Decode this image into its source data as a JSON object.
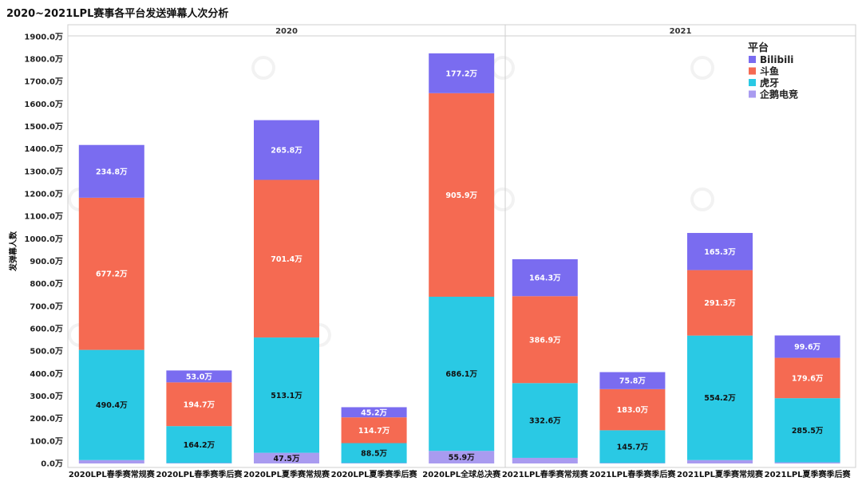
{
  "chart_data": {
    "type": "bar",
    "stacked": true,
    "title": "2020~2021LPL赛事各平台发送弹幕人次分析",
    "ylabel": "发弹幕人数",
    "unit": "万",
    "ylim": [
      0,
      1950
    ],
    "yticks": [
      "0.0万",
      "100.0万",
      "200.0万",
      "300.0万",
      "400.0万",
      "500.0万",
      "600.0万",
      "700.0万",
      "800.0万",
      "900.0万",
      "1000.0万",
      "1100.0万",
      "1200.0万",
      "1300.0万",
      "1400.0万",
      "1500.0万",
      "1600.0万",
      "1700.0万",
      "1800.0万",
      "1900.0万"
    ],
    "panels": [
      {
        "label": "2020",
        "categories": [
          "2020LPL春季赛常规赛",
          "2020LPL春季赛季后赛",
          "2020LPL夏季赛常规赛",
          "2020LPL夏季赛季后赛",
          "2020LPL全球总决赛"
        ]
      },
      {
        "label": "2021",
        "categories": [
          "2021LPL春季赛常规赛",
          "2021LPL春季赛季后赛",
          "2021LPL夏季赛常规赛",
          "2021LPL夏季赛季后赛"
        ]
      }
    ],
    "series": [
      {
        "name": "企鹅电竞",
        "color": "#a99bf0",
        "values": [
          15,
          2,
          47.5,
          2,
          55.9,
          25,
          2,
          15,
          5
        ],
        "labels": [
          "",
          "",
          "47.5万",
          "",
          "55.9万",
          "",
          "",
          "",
          ""
        ]
      },
      {
        "name": "虎牙",
        "color": "#2ac9e4",
        "values": [
          490.4,
          164.2,
          513.1,
          88.5,
          686.1,
          332.6,
          145.7,
          554.2,
          285.5
        ],
        "labels": [
          "490.4万",
          "164.2万",
          "513.1万",
          "88.5万",
          "686.1万",
          "332.6万",
          "145.7万",
          "554.2万",
          "285.5万"
        ]
      },
      {
        "name": "斗鱼",
        "color": "#f56a52",
        "values": [
          677.2,
          194.7,
          701.4,
          114.7,
          905.9,
          386.9,
          183.0,
          291.3,
          179.6
        ],
        "labels": [
          "677.2万",
          "194.7万",
          "701.4万",
          "114.7万",
          "905.9万",
          "386.9万",
          "183.0万",
          "291.3万",
          "179.6万"
        ]
      },
      {
        "name": "Bilibili",
        "color": "#7a6cf0",
        "values": [
          234.8,
          53.0,
          265.8,
          45.2,
          177.2,
          164.3,
          75.8,
          165.3,
          99.6
        ],
        "labels": [
          "234.8万",
          "53.0万",
          "265.8万",
          "45.2万",
          "177.2万",
          "164.3万",
          "75.8万",
          "165.3万",
          "99.6万"
        ]
      }
    ],
    "legend": {
      "title": "平台",
      "position": "top-right",
      "entries": [
        {
          "name": "Bilibili",
          "color": "#7a6cf0"
        },
        {
          "name": "斗鱼",
          "color": "#f56a52"
        },
        {
          "name": "虎牙",
          "color": "#2ac9e4"
        },
        {
          "name": "企鹅电竞",
          "color": "#a99bf0"
        }
      ]
    },
    "grid": false
  }
}
